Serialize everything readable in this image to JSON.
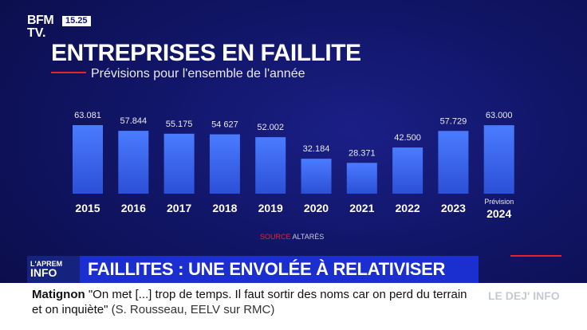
{
  "channel": {
    "brand_line1": "BFM",
    "brand_line2": "TV.",
    "time": "15.25"
  },
  "title": "ENTREPRISES EN FAILLITE",
  "subtitle": "Prévisions pour l'ensemble de l'année",
  "source": {
    "label": "SOURCE",
    "name": "ALTARÈS"
  },
  "chart_data": {
    "type": "bar",
    "title": "ENTREPRISES EN FAILLITE",
    "subtitle": "Prévisions pour l'ensemble de l'année",
    "categories": [
      "2015",
      "2016",
      "2017",
      "2018",
      "2019",
      "2020",
      "2021",
      "2022",
      "2023",
      "2024"
    ],
    "values": [
      63081,
      57844,
      55175,
      54627,
      52002,
      32184,
      28371,
      42500,
      57729,
      63000
    ],
    "value_labels": [
      "63.081",
      "57.844",
      "55.175",
      "54 627",
      "52.002",
      "32.184",
      "28.371",
      "42.500",
      "57.729",
      "63.000"
    ],
    "annotations": [
      {
        "category": "2024",
        "text": "Prévision"
      }
    ],
    "ylim": [
      0,
      63081
    ],
    "grid": false,
    "legend": "none"
  },
  "banner": {
    "program_line1": "L'APREM",
    "program_line2": "INFO",
    "headline": "FAILLITES : UNE ENVOLÉE À RELATIVISER"
  },
  "ticker": {
    "speaker": "Matignon",
    "quote": "\"On met [...] trop de temps. Il faut sortir des noms car on perd du terrain et on inquiète\"",
    "attribution": "(S. Rousseau, EELV sur RMC)",
    "program": "LE DEJ' INFO"
  },
  "colors": {
    "background": "#111566",
    "bar": "#3d6ef5",
    "accent_red": "#e5232b",
    "banner": "#1b2fd0"
  }
}
